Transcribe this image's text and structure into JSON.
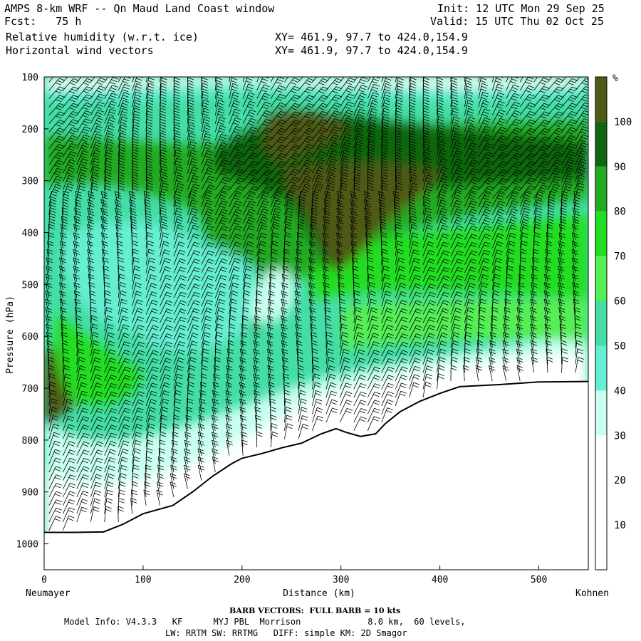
{
  "header": {
    "title": "AMPS 8-km WRF -- Qn Maud Land Coast window",
    "forecast_label": "Fcst:",
    "forecast_value": "75 h",
    "field1": "Relative humidity (w.r.t. ice)",
    "field2": "Horizontal wind vectors",
    "xy1": "XY= 461.9, 97.7 to 424.0,154.9",
    "xy2": "XY= 461.9, 97.7 to 424.0,154.9",
    "init": "Init: 12 UTC Mon 29 Sep 25",
    "valid": "Valid: 15 UTC Thu 02 Oct 25"
  },
  "footer": {
    "barb_legend": "BARB VECTORS:  FULL BARB = 10 kts",
    "model_info_1": "Model Info: V4.3.3   KF      MYJ PBL  Morrison             8.0 km,  60 levels,",
    "model_info_2": "LW: RRTM SW: RRTMG   DIFF: simple KM: 2D Smagor"
  },
  "chart_data": {
    "type": "heatmap",
    "title": "Relative humidity (w.r.t. ice)",
    "xlabel": "Distance (km)",
    "ylabel": "Pressure (hPa)",
    "x_start_label": "Neumayer",
    "x_end_label": "Kohnen",
    "xlim": [
      0,
      550
    ],
    "ylim": [
      100,
      1050
    ],
    "xticks": [
      0,
      100,
      200,
      300,
      400,
      500
    ],
    "yticks": [
      100,
      200,
      300,
      400,
      500,
      600,
      700,
      800,
      900,
      1000
    ],
    "colorbar": {
      "unit": "%",
      "levels": [
        10,
        20,
        30,
        40,
        50,
        60,
        70,
        80,
        90,
        100
      ],
      "colors": [
        "#ffffff",
        "#ffffff",
        "#ffffff",
        "#c8fff0",
        "#66eed2",
        "#44dda6",
        "#55ee55",
        "#22dd22",
        "#22aa22",
        "#116611",
        "#4d5a14"
      ]
    },
    "terrain_profile": [
      [
        0,
        978
      ],
      [
        30,
        978
      ],
      [
        60,
        977
      ],
      [
        80,
        962
      ],
      [
        100,
        942
      ],
      [
        130,
        926
      ],
      [
        150,
        900
      ],
      [
        170,
        870
      ],
      [
        190,
        845
      ],
      [
        200,
        835
      ],
      [
        220,
        826
      ],
      [
        240,
        815
      ],
      [
        260,
        806
      ],
      [
        280,
        788
      ],
      [
        295,
        778
      ],
      [
        305,
        785
      ],
      [
        320,
        793
      ],
      [
        335,
        788
      ],
      [
        345,
        768
      ],
      [
        360,
        745
      ],
      [
        380,
        725
      ],
      [
        400,
        710
      ],
      [
        420,
        697
      ],
      [
        460,
        693
      ],
      [
        500,
        688
      ],
      [
        550,
        687
      ]
    ]
  }
}
